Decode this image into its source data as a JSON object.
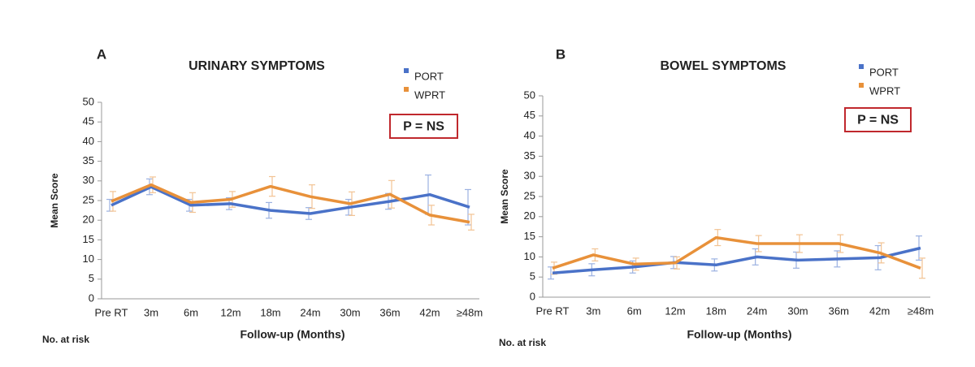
{
  "chart_data": [
    {
      "type": "line",
      "panel_label": "A",
      "title": "URINARY SYMPTOMS",
      "annotation": "P = NS",
      "footnote": "No. at risk",
      "x_label": "Follow-up (Months)",
      "y_label": "Mean Score",
      "categories": [
        "Pre RT",
        "3m",
        "6m",
        "12m",
        "18m",
        "24m",
        "30m",
        "36m",
        "42m",
        "≥48m"
      ],
      "series": [
        {
          "name": "PORT",
          "color": "#4a72c8",
          "values": [
            23.8,
            28.5,
            23.8,
            24.2,
            22.5,
            21.7,
            23.3,
            24.8,
            26.5,
            23.3
          ],
          "errors": [
            1.5,
            2,
            1.5,
            1.5,
            2,
            1.5,
            2,
            2,
            5,
            4.5
          ]
        },
        {
          "name": "WPRT",
          "color": "#e8913a",
          "values": [
            24.8,
            29,
            24.5,
            25.3,
            28.6,
            26,
            24.2,
            26.6,
            21.3,
            19.5
          ],
          "errors": [
            2.5,
            2,
            2.5,
            2,
            2.5,
            3,
            3,
            3.5,
            2.5,
            2
          ]
        }
      ],
      "ylim": [
        0,
        50
      ],
      "yticks": [
        0,
        5,
        10,
        15,
        20,
        25,
        30,
        35,
        40,
        45,
        50
      ],
      "grid": false
    },
    {
      "type": "line",
      "panel_label": "B",
      "title": "BOWEL SYMPTOMS",
      "annotation": "P = NS",
      "footnote": "No. at risk",
      "x_label": "Follow-up (Months)",
      "y_label": "Mean Score",
      "categories": [
        "Pre RT",
        "3m",
        "6m",
        "12m",
        "18m",
        "24m",
        "30m",
        "36m",
        "42m",
        "≥48m"
      ],
      "series": [
        {
          "name": "PORT",
          "color": "#4a72c8",
          "values": [
            6,
            6.8,
            7.5,
            8.6,
            8,
            10,
            9.2,
            9.5,
            9.8,
            12.2
          ],
          "errors": [
            1.5,
            1.5,
            1.5,
            1.5,
            1.5,
            2,
            2,
            2,
            3,
            3
          ]
        },
        {
          "name": "WPRT",
          "color": "#e8913a",
          "values": [
            7.2,
            10.5,
            8.2,
            8.5,
            14.8,
            13.3,
            13.3,
            13.3,
            11,
            7.2
          ],
          "errors": [
            1.5,
            1.5,
            1.5,
            1.5,
            2,
            2,
            2.2,
            2.2,
            2.5,
            2.5
          ]
        }
      ],
      "ylim": [
        0,
        50
      ],
      "yticks": [
        0,
        5,
        10,
        15,
        20,
        25,
        30,
        35,
        40,
        45,
        50
      ],
      "grid": false
    }
  ]
}
